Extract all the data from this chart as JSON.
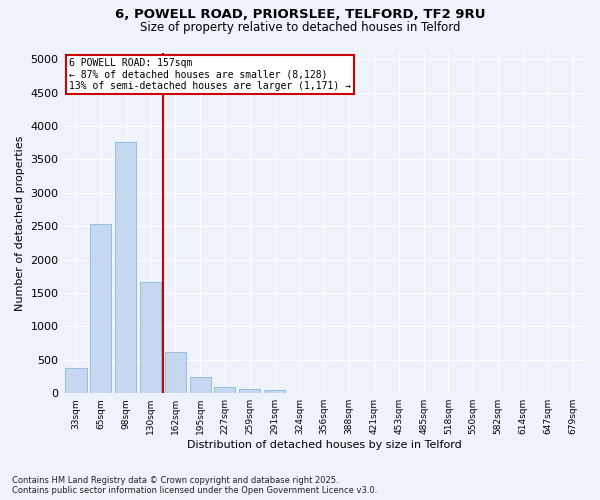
{
  "title_line1": "6, POWELL ROAD, PRIORSLEE, TELFORD, TF2 9RU",
  "title_line2": "Size of property relative to detached houses in Telford",
  "xlabel": "Distribution of detached houses by size in Telford",
  "ylabel": "Number of detached properties",
  "categories": [
    "33sqm",
    "65sqm",
    "98sqm",
    "130sqm",
    "162sqm",
    "195sqm",
    "227sqm",
    "259sqm",
    "291sqm",
    "324sqm",
    "356sqm",
    "388sqm",
    "421sqm",
    "453sqm",
    "485sqm",
    "518sqm",
    "550sqm",
    "582sqm",
    "614sqm",
    "647sqm",
    "679sqm"
  ],
  "values": [
    370,
    2540,
    3760,
    1660,
    610,
    240,
    100,
    60,
    50,
    0,
    0,
    0,
    0,
    0,
    0,
    0,
    0,
    0,
    0,
    0,
    0
  ],
  "bar_color": "#c5d8f0",
  "bar_edge_color": "#7aaed6",
  "vline_color": "#cc0000",
  "annotation_title": "6 POWELL ROAD: 157sqm",
  "annotation_line2": "← 87% of detached houses are smaller (8,128)",
  "annotation_line3": "13% of semi-detached houses are larger (1,171) →",
  "annotation_box_color": "#cc0000",
  "annotation_bg": "#ffffff",
  "ylim": [
    0,
    5100
  ],
  "yticks": [
    0,
    500,
    1000,
    1500,
    2000,
    2500,
    3000,
    3500,
    4000,
    4500,
    5000
  ],
  "footnote_line1": "Contains HM Land Registry data © Crown copyright and database right 2025.",
  "footnote_line2": "Contains public sector information licensed under the Open Government Licence v3.0.",
  "bg_color": "#eef2fb",
  "grid_color": "#ffffff"
}
